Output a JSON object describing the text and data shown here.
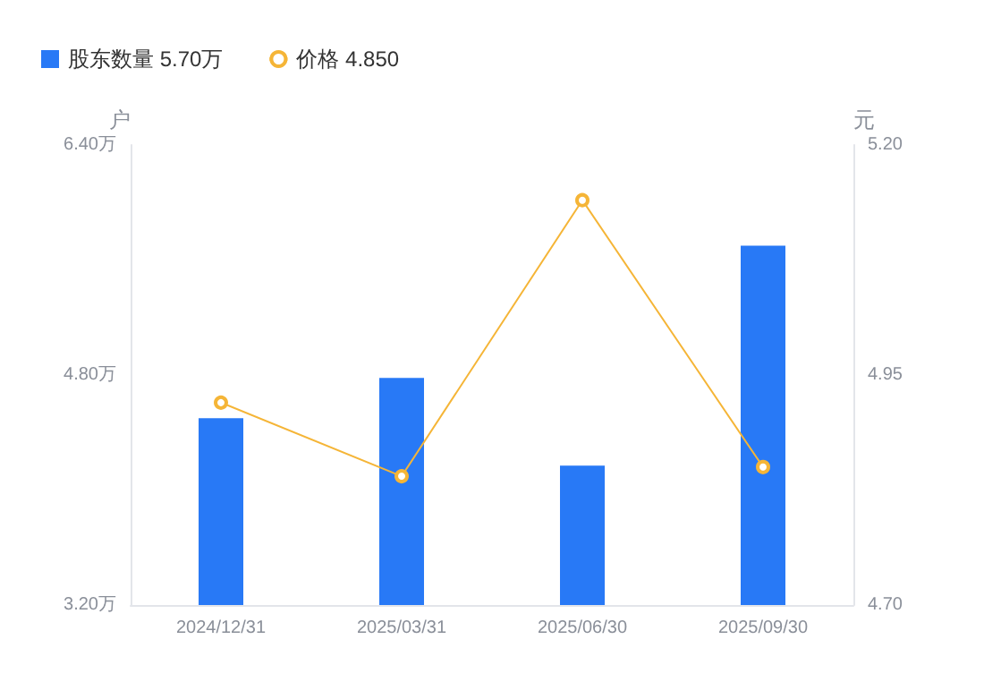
{
  "chart_data": {
    "type": "bar",
    "categories": [
      "2024/12/31",
      "2025/03/31",
      "2025/06/30",
      "2025/09/30"
    ],
    "series": [
      {
        "name": "股东数量 5.70万",
        "color": "#2879f6",
        "values": [
          4.5,
          4.78,
          4.17,
          5.7
        ]
      },
      {
        "name": "价格 4.850",
        "type": "line",
        "axis": "y2",
        "color": "#f5b537",
        "values": [
          4.92,
          4.84,
          5.14,
          4.85
        ]
      }
    ],
    "ylabel": "户",
    "y2label": "元",
    "ylim": [
      3.2,
      6.4
    ],
    "yticks": [
      {
        "value": 3.2,
        "label": "3.20万"
      },
      {
        "value": 4.8,
        "label": "4.80万"
      },
      {
        "value": 6.4,
        "label": "6.40万"
      }
    ],
    "y2lim": [
      4.7,
      5.2
    ],
    "y2ticks": [
      {
        "value": 4.7,
        "label": "4.70"
      },
      {
        "value": 4.95,
        "label": "4.95"
      },
      {
        "value": 5.2,
        "label": "5.20"
      }
    ],
    "legend": "top left",
    "marker": "circle",
    "line_style": "solid",
    "grid": false
  }
}
